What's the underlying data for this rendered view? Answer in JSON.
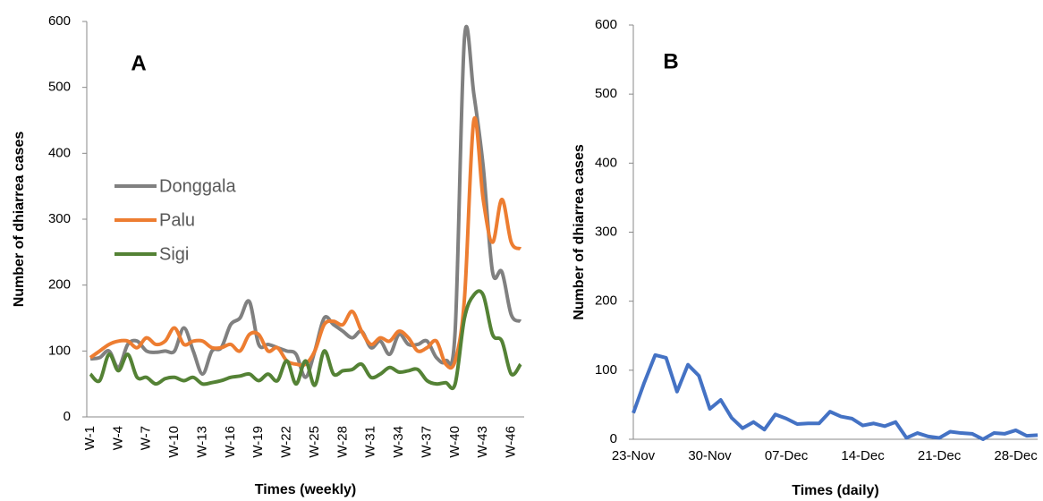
{
  "chart_data": [
    {
      "type": "line",
      "annotation": "A",
      "ylabel": "Number of dhiarrea cases",
      "xlabel": "Times (weekly)",
      "categories": [
        "W-1",
        null,
        null,
        "W-4",
        null,
        null,
        "W-7",
        null,
        null,
        "W-10",
        null,
        null,
        "W-13",
        null,
        null,
        "W-16",
        null,
        null,
        "W-19",
        null,
        null,
        "W-22",
        null,
        null,
        "W-25",
        null,
        null,
        "W-28",
        null,
        null,
        "W-31",
        null,
        null,
        "W-34",
        null,
        null,
        "W-37",
        null,
        null,
        "W-40",
        null,
        null,
        "W-43",
        null,
        null,
        "W-46",
        null
      ],
      "series": [
        {
          "name": "Donggala",
          "color": "#808080",
          "values": [
            88,
            90,
            100,
            75,
            110,
            115,
            100,
            98,
            100,
            100,
            135,
            100,
            65,
            100,
            105,
            140,
            150,
            175,
            110,
            110,
            105,
            100,
            95,
            60,
            100,
            150,
            140,
            130,
            120,
            130,
            105,
            115,
            95,
            125,
            110,
            110,
            115,
            90,
            85,
            130,
            575,
            490,
            380,
            220,
            220,
            155,
            145
          ]
        },
        {
          "name": "Palu",
          "color": "#ed7d31",
          "values": [
            90,
            100,
            110,
            115,
            115,
            105,
            120,
            110,
            115,
            135,
            110,
            115,
            115,
            105,
            105,
            110,
            100,
            125,
            125,
            100,
            105,
            85,
            80,
            80,
            100,
            140,
            145,
            140,
            160,
            130,
            110,
            120,
            115,
            130,
            120,
            100,
            105,
            115,
            80,
            85,
            180,
            450,
            330,
            265,
            330,
            265,
            255
          ]
        },
        {
          "name": "Sigi",
          "color": "#548235",
          "values": [
            65,
            55,
            95,
            70,
            95,
            60,
            60,
            50,
            58,
            60,
            55,
            60,
            50,
            52,
            55,
            60,
            62,
            65,
            55,
            65,
            55,
            85,
            50,
            85,
            48,
            100,
            65,
            70,
            72,
            80,
            60,
            65,
            75,
            68,
            70,
            72,
            55,
            50,
            52,
            50,
            150,
            185,
            185,
            125,
            115,
            65,
            80
          ]
        }
      ],
      "ylim": [
        0,
        600
      ],
      "yticks": [
        0,
        100,
        200,
        300,
        400,
        500,
        600
      ],
      "smooth": true,
      "legend": "center-left"
    },
    {
      "type": "line",
      "annotation": "B",
      "ylabel": "Number of dhiarrea cases",
      "xlabel": "Times (daily)",
      "categories": [
        "23-Nov",
        null,
        null,
        null,
        null,
        null,
        null,
        "30-Nov",
        null,
        null,
        null,
        null,
        null,
        null,
        "07-Dec",
        null,
        null,
        null,
        null,
        null,
        null,
        "14-Dec",
        null,
        null,
        null,
        null,
        null,
        null,
        "21-Dec",
        null,
        null,
        null,
        null,
        null,
        null,
        "28-Dec",
        null,
        null
      ],
      "values": [
        38,
        82,
        122,
        118,
        69,
        108,
        92,
        44,
        57,
        31,
        16,
        25,
        14,
        36,
        30,
        22,
        23,
        23,
        40,
        33,
        30,
        20,
        23,
        19,
        25,
        2,
        9,
        4,
        2,
        11,
        9,
        8,
        0,
        9,
        8,
        13,
        5,
        6
      ],
      "color": "#4472c4",
      "ylim": [
        0,
        600
      ],
      "yticks": [
        0,
        100,
        200,
        300,
        400,
        500,
        600
      ],
      "smooth": false
    }
  ]
}
